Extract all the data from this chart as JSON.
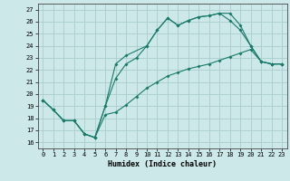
{
  "xlabel": "Humidex (Indice chaleur)",
  "bg_color": "#cce8e8",
  "grid_color": "#aacccc",
  "line_color": "#1a7a6a",
  "xlim": [
    -0.5,
    23.5
  ],
  "ylim": [
    15.5,
    27.5
  ],
  "xticks": [
    0,
    1,
    2,
    3,
    4,
    5,
    6,
    7,
    8,
    9,
    10,
    11,
    12,
    13,
    14,
    15,
    16,
    17,
    18,
    19,
    20,
    21,
    22,
    23
  ],
  "yticks": [
    16,
    17,
    18,
    19,
    20,
    21,
    22,
    23,
    24,
    25,
    26,
    27
  ],
  "line1_x": [
    0,
    1,
    2,
    3,
    4,
    5,
    6,
    7,
    8,
    9,
    10,
    11,
    12,
    13,
    14,
    15,
    16,
    17,
    18,
    19,
    20,
    21,
    22,
    23
  ],
  "line1_y": [
    19.5,
    18.7,
    17.8,
    17.8,
    16.7,
    16.4,
    18.3,
    18.5,
    19.1,
    19.8,
    20.5,
    21.0,
    21.5,
    21.8,
    22.1,
    22.3,
    22.5,
    22.8,
    23.1,
    23.4,
    23.7,
    22.7,
    22.5,
    22.5
  ],
  "line2_x": [
    0,
    1,
    2,
    3,
    4,
    5,
    6,
    7,
    8,
    9,
    10,
    11,
    12,
    13,
    14,
    15,
    16,
    17,
    18,
    19,
    20,
    21,
    22,
    23
  ],
  "line2_y": [
    19.5,
    18.7,
    17.8,
    17.8,
    16.7,
    16.4,
    19.0,
    21.3,
    22.5,
    23.0,
    24.0,
    25.3,
    26.3,
    25.7,
    26.1,
    26.4,
    26.5,
    26.7,
    26.7,
    25.7,
    24.0,
    22.7,
    22.5,
    22.5
  ],
  "line3_x": [
    0,
    1,
    2,
    3,
    4,
    5,
    6,
    7,
    8,
    10,
    11,
    12,
    13,
    14,
    15,
    16,
    17,
    18,
    19,
    20,
    21,
    22,
    23
  ],
  "line3_y": [
    19.5,
    18.7,
    17.8,
    17.8,
    16.7,
    16.4,
    19.0,
    22.5,
    23.2,
    24.0,
    25.3,
    26.3,
    25.7,
    26.1,
    26.4,
    26.5,
    26.7,
    26.1,
    25.3,
    24.0,
    22.7,
    22.5,
    22.5
  ]
}
